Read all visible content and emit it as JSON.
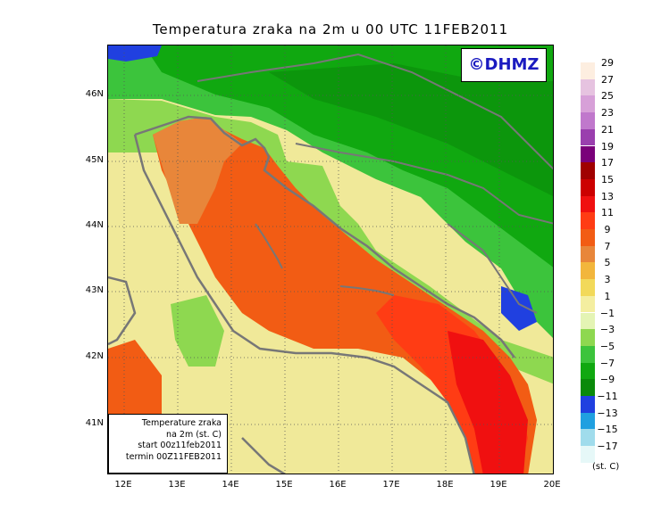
{
  "title": "Temperatura zraka na 2m u 00 UTC 11FEB2011",
  "watermark": "©DHMZ",
  "infobox": {
    "line1": "Temperature zraka",
    "line2": "na 2m (st. C)",
    "line3": "start 00z11feb2011",
    "line4": "termin 00Z11FEB2011"
  },
  "lat_labels": [
    "46N",
    "45N",
    "44N",
    "43N",
    "42N",
    "41N"
  ],
  "lon_labels": [
    "12E",
    "13E",
    "14E",
    "15E",
    "16E",
    "17E",
    "18E",
    "19E",
    "20E"
  ],
  "legend": {
    "labels": [
      "29",
      "27",
      "25",
      "23",
      "21",
      "19",
      "17",
      "15",
      "13",
      "11",
      "9",
      "7",
      "5",
      "3",
      "1",
      "−1",
      "−3",
      "−5",
      "−7",
      "−9",
      "−11",
      "−13",
      "−15",
      "−17"
    ],
    "colors": [
      "#fdeee0",
      "#e6c3e0",
      "#d7a0d8",
      "#c078cc",
      "#9a3fae",
      "#7a007a",
      "#a00000",
      "#cc0000",
      "#f01010",
      "#ff3c14",
      "#f25c14",
      "#e8863a",
      "#f2b63c",
      "#f2d95a",
      "#f4eea0",
      "#e4f4b4",
      "#8ed850",
      "#3cc43c",
      "#10a810",
      "#0a8a0a",
      "#2040e0",
      "#20a0e0",
      "#a0dcec",
      "#e6f8f8"
    ],
    "unit": "(st. C)"
  }
}
